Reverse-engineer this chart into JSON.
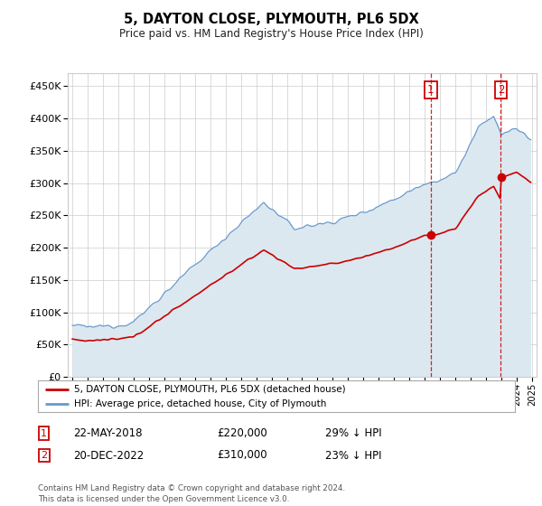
{
  "title": "5, DAYTON CLOSE, PLYMOUTH, PL6 5DX",
  "subtitle": "Price paid vs. HM Land Registry's House Price Index (HPI)",
  "ytick_values": [
    0,
    50000,
    100000,
    150000,
    200000,
    250000,
    300000,
    350000,
    400000,
    450000
  ],
  "ylim": [
    0,
    470000
  ],
  "xlim_start": 1994.7,
  "xlim_end": 2025.3,
  "transaction1": {
    "date_num": 2018.39,
    "price": 220000,
    "label": "1",
    "text": "22-MAY-2018",
    "amount": "£220,000",
    "pct": "29% ↓ HPI"
  },
  "transaction2": {
    "date_num": 2022.97,
    "price": 310000,
    "label": "2",
    "text": "20-DEC-2022",
    "amount": "£310,000",
    "pct": "23% ↓ HPI"
  },
  "legend_red_label": "5, DAYTON CLOSE, PLYMOUTH, PL6 5DX (detached house)",
  "legend_blue_label": "HPI: Average price, detached house, City of Plymouth",
  "footer": "Contains HM Land Registry data © Crown copyright and database right 2024.\nThis data is licensed under the Open Government Licence v3.0.",
  "red_color": "#cc0000",
  "blue_color": "#6699cc",
  "blue_fill_color": "#dce8f0",
  "grid_color": "#cccccc",
  "vline_color": "#cc0000",
  "box_color": "#cc0000",
  "background_color": "#ffffff"
}
